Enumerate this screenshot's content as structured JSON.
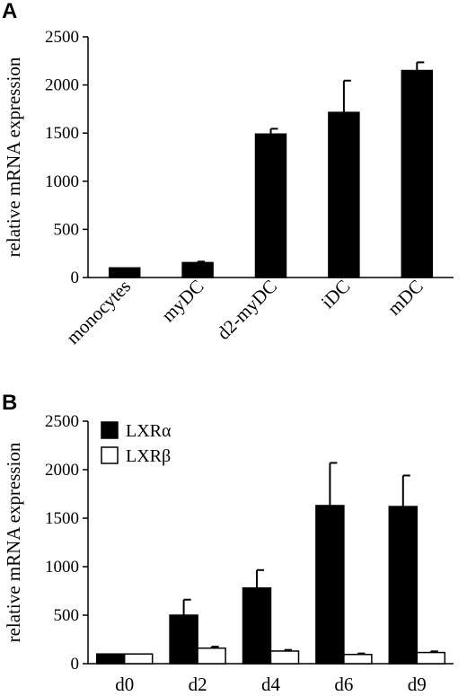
{
  "chart_data": [
    {
      "panel": "A",
      "type": "bar",
      "ylabel": "relative mRNA expression",
      "ylim": [
        0,
        2500
      ],
      "yticks": [
        0,
        500,
        1000,
        1500,
        2000,
        2500
      ],
      "categories": [
        "monocytes",
        "myDC",
        "d2-myDC",
        "iDC",
        "mDC"
      ],
      "series": [
        {
          "values": [
            100,
            155,
            1490,
            1715,
            2150
          ],
          "errors": [
            0,
            10,
            55,
            330,
            85
          ],
          "color": "#000000"
        }
      ]
    },
    {
      "panel": "B",
      "type": "bar",
      "ylabel": "relative mRNA expression",
      "ylim": [
        0,
        2500
      ],
      "yticks": [
        0,
        500,
        1000,
        1500,
        2000,
        2500
      ],
      "categories": [
        "d0",
        "d2",
        "d4",
        "d6",
        "d9"
      ],
      "legend_position": "top-left",
      "series": [
        {
          "name": "LXRα",
          "values": [
            100,
            500,
            780,
            1630,
            1620
          ],
          "errors": [
            0,
            160,
            185,
            440,
            320
          ],
          "color": "#000000"
        },
        {
          "name": "LXRβ",
          "values": [
            100,
            160,
            130,
            95,
            115
          ],
          "errors": [
            0,
            15,
            12,
            10,
            12
          ],
          "color": "#ffffff"
        }
      ]
    }
  ]
}
